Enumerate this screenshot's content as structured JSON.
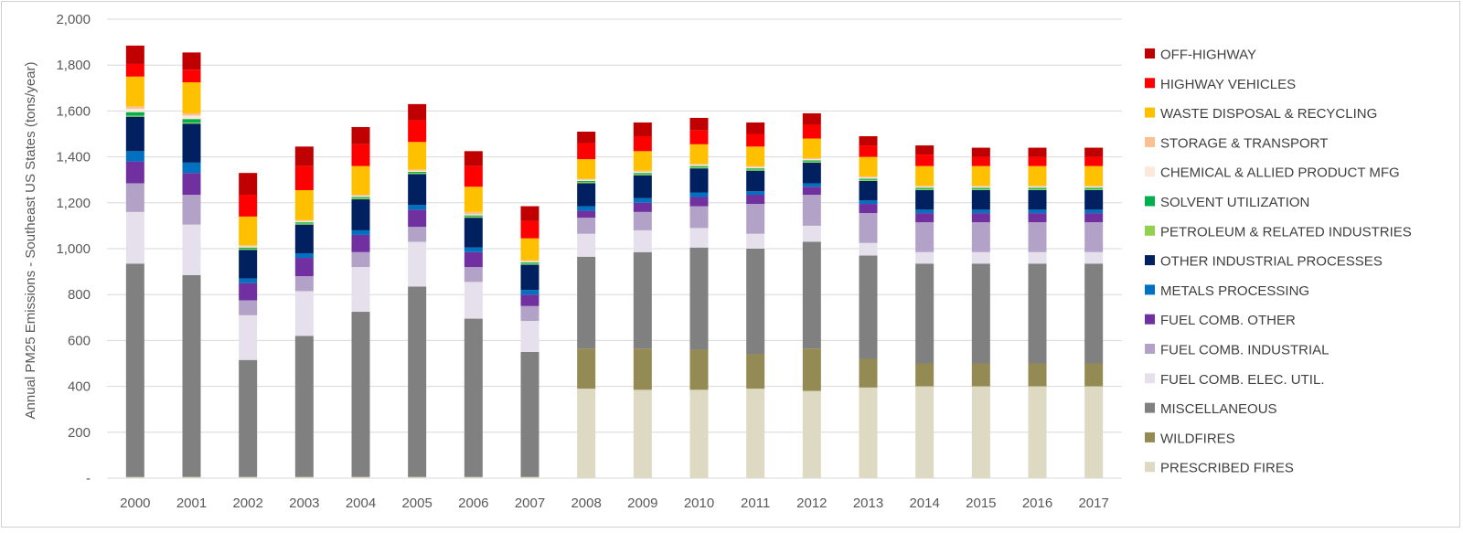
{
  "chart_data": {
    "type": "bar",
    "stacked": true,
    "title": "",
    "xlabel": "",
    "ylabel": "Annual PM25 Emissions - Southeast US States  (tons/year)",
    "ylim": [
      0,
      2000
    ],
    "ytick_step": 200,
    "yticks": [
      "-",
      "200",
      "400",
      "600",
      "800",
      "1,000",
      "1,200",
      "1,400",
      "1,600",
      "1,800",
      "2,000"
    ],
    "categories": [
      "2000",
      "2001",
      "2002",
      "2003",
      "2004",
      "2005",
      "2006",
      "2007",
      "2008",
      "2009",
      "2010",
      "2011",
      "2012",
      "2013",
      "2014",
      "2015",
      "2016",
      "2017"
    ],
    "legend_position": "right",
    "series": [
      {
        "name": "PRESCRIBED FIRES",
        "color": "#ddd9c3",
        "values": [
          5,
          5,
          5,
          5,
          5,
          5,
          5,
          5,
          390,
          385,
          385,
          390,
          380,
          395,
          400,
          400,
          400,
          400
        ]
      },
      {
        "name": "WILDFIRES",
        "color": "#948a54",
        "values": [
          0,
          0,
          0,
          0,
          0,
          0,
          0,
          0,
          175,
          180,
          175,
          150,
          185,
          125,
          100,
          100,
          100,
          100
        ]
      },
      {
        "name": "MISCELLANEOUS",
        "color": "#808080",
        "values": [
          930,
          880,
          510,
          615,
          720,
          830,
          690,
          545,
          400,
          420,
          445,
          460,
          465,
          450,
          435,
          435,
          435,
          435
        ]
      },
      {
        "name": "FUEL COMB. ELEC. UTIL.",
        "color": "#e6e0ec",
        "values": [
          225,
          220,
          195,
          195,
          195,
          195,
          160,
          135,
          100,
          95,
          85,
          65,
          70,
          55,
          50,
          50,
          50,
          50
        ]
      },
      {
        "name": "FUEL COMB. INDUSTRIAL",
        "color": "#b3a2c7",
        "values": [
          125,
          130,
          65,
          65,
          65,
          65,
          65,
          65,
          70,
          80,
          95,
          130,
          135,
          130,
          130,
          130,
          130,
          130
        ]
      },
      {
        "name": "FUEL COMB. OTHER",
        "color": "#7030a0",
        "values": [
          95,
          95,
          75,
          80,
          75,
          75,
          65,
          50,
          30,
          40,
          40,
          40,
          35,
          40,
          40,
          40,
          40,
          40
        ]
      },
      {
        "name": "METALS PROCESSING",
        "color": "#0070c0",
        "values": [
          45,
          45,
          20,
          20,
          20,
          20,
          20,
          20,
          20,
          20,
          20,
          15,
          15,
          15,
          15,
          15,
          15,
          15
        ]
      },
      {
        "name": "OTHER INDUSTRIAL PROCESSES",
        "color": "#002060",
        "values": [
          150,
          170,
          125,
          125,
          135,
          135,
          130,
          110,
          100,
          100,
          105,
          90,
          90,
          85,
          85,
          85,
          85,
          85
        ]
      },
      {
        "name": "PETROLEUM & RELATED INDUSTRIES",
        "color": "#92d050",
        "values": [
          5,
          5,
          5,
          5,
          5,
          5,
          5,
          5,
          5,
          5,
          5,
          5,
          5,
          5,
          5,
          5,
          5,
          5
        ]
      },
      {
        "name": "SOLVENT UTILIZATION",
        "color": "#00b050",
        "values": [
          15,
          15,
          5,
          5,
          5,
          5,
          5,
          5,
          5,
          5,
          5,
          5,
          5,
          5,
          5,
          5,
          5,
          5
        ]
      },
      {
        "name": "CHEMICAL & ALLIED PRODUCT MFG",
        "color": "#fde9d9",
        "values": [
          15,
          15,
          5,
          5,
          5,
          5,
          5,
          5,
          5,
          5,
          5,
          5,
          5,
          5,
          5,
          5,
          5,
          5
        ]
      },
      {
        "name": "STORAGE & TRANSPORT",
        "color": "#fac090",
        "values": [
          10,
          10,
          5,
          5,
          5,
          5,
          10,
          5,
          5,
          5,
          5,
          5,
          5,
          5,
          5,
          5,
          5,
          5
        ]
      },
      {
        "name": "WASTE DISPOSAL & RECYCLING",
        "color": "#ffc000",
        "values": [
          130,
          135,
          125,
          130,
          125,
          120,
          110,
          95,
          85,
          85,
          85,
          85,
          85,
          85,
          85,
          85,
          85,
          85
        ]
      },
      {
        "name": "HIGHWAY VEHICLES",
        "color": "#ff0000",
        "values": [
          55,
          55,
          95,
          105,
          95,
          95,
          90,
          75,
          70,
          65,
          60,
          55,
          60,
          50,
          50,
          40,
          40,
          40
        ]
      },
      {
        "name": "OFF-HIGHWAY",
        "color": "#c00000",
        "values": [
          80,
          75,
          95,
          85,
          75,
          70,
          65,
          65,
          50,
          60,
          55,
          50,
          50,
          40,
          40,
          40,
          40,
          40
        ]
      }
    ]
  }
}
